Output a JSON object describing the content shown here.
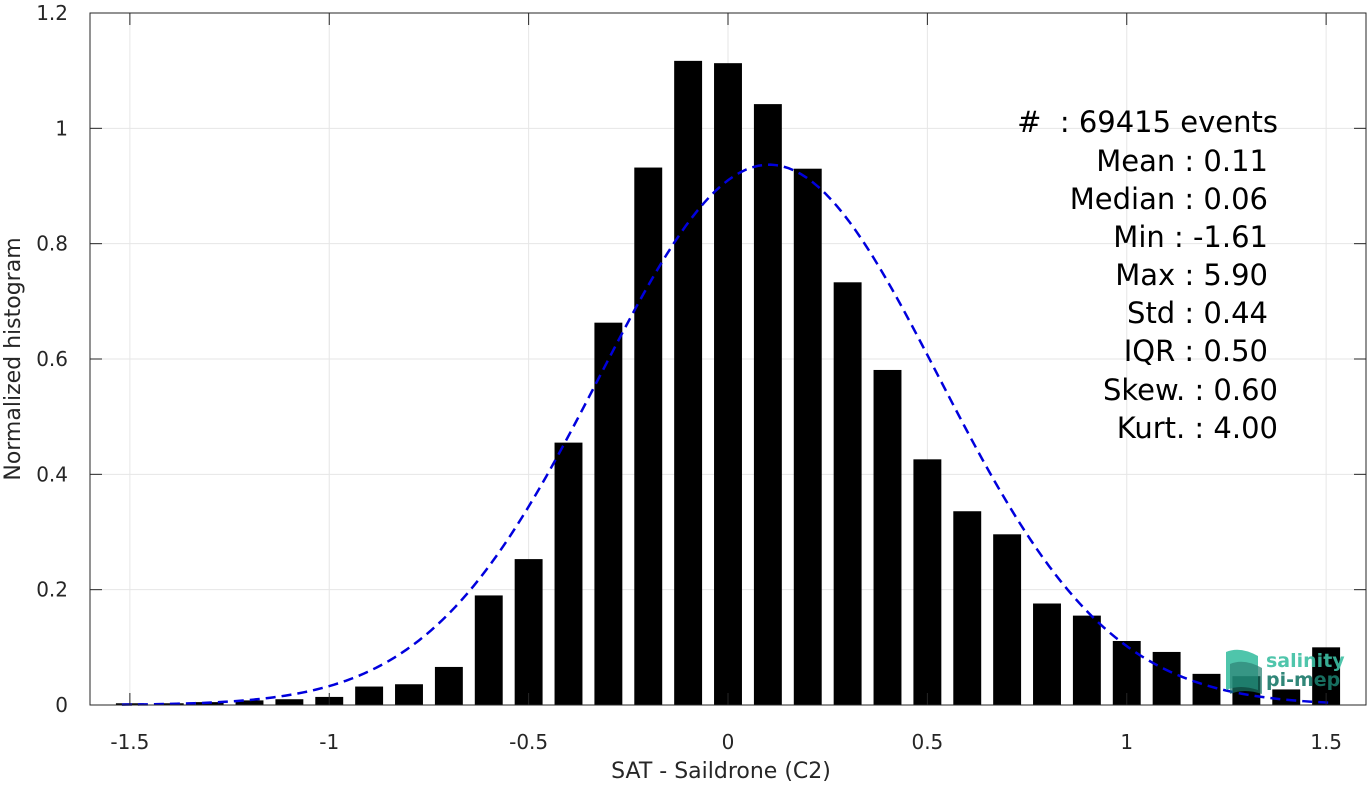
{
  "chart_data": {
    "type": "bar",
    "xlabel": "SAT - Saildrone (C2)",
    "ylabel": "Normalized histogram",
    "xlim": [
      -1.6,
      1.6
    ],
    "ylim": [
      0,
      1.2
    ],
    "grid": true,
    "xticks": [
      -1.5,
      -1,
      -0.5,
      0,
      0.5,
      1,
      1.5
    ],
    "xtick_labels": [
      "-1.5",
      "-1",
      "-0.5",
      "0",
      "0.5",
      "1",
      "1.5"
    ],
    "yticks": [
      0,
      0.2,
      0.4,
      0.6,
      0.8,
      1,
      1.2
    ],
    "ytick_labels": [
      "0",
      "0.2",
      "0.4",
      "0.6",
      "0.8",
      "1",
      "1.2"
    ],
    "bar_color": "#000000",
    "curve_color": "#0000dd",
    "bar_width": 0.07,
    "bars": {
      "x": [
        -1.5,
        -1.4,
        -1.3,
        -1.2,
        -1.1,
        -1.0,
        -0.9,
        -0.8,
        -0.7,
        -0.6,
        -0.5,
        -0.4,
        -0.3,
        -0.2,
        -0.1,
        0.0,
        0.1,
        0.2,
        0.3,
        0.4,
        0.5,
        0.6,
        0.7,
        0.8,
        0.9,
        1.0,
        1.1,
        1.2,
        1.3,
        1.4,
        1.5
      ],
      "values": [
        0.003,
        0.003,
        0.005,
        0.008,
        0.01,
        0.014,
        0.032,
        0.036,
        0.066,
        0.19,
        0.253,
        0.455,
        0.663,
        0.932,
        1.117,
        1.113,
        1.042,
        0.93,
        0.733,
        0.581,
        0.426,
        0.336,
        0.296,
        0.176,
        0.155,
        0.111,
        0.092,
        0.054,
        0.05,
        0.027,
        0.1
      ]
    },
    "fit_curve": {
      "style": "dashed",
      "mean": 0.103,
      "std": 0.426,
      "peak": 0.937,
      "x_range": [
        -1.52,
        1.52
      ]
    },
    "stats": {
      "count": "#  : 69415 events",
      "mean": "Mean : 0.11",
      "median": "Median : 0.06",
      "min": "Min : -1.61",
      "max": "Max : 5.90",
      "std": "Std : 0.44",
      "iqr": "IQR : 0.50",
      "skew": "Skew. : 0.60",
      "kurt": "Kurt. : 4.00"
    },
    "logo": {
      "line1": "salinity",
      "line2": "pi-mep",
      "color1": "#3dbfa3",
      "color2": "#1a7a6a"
    }
  }
}
